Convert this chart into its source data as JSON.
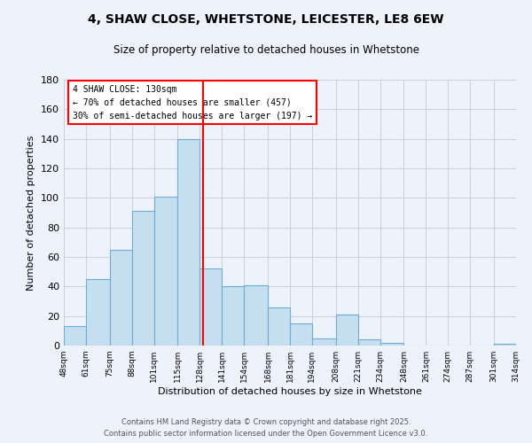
{
  "title": "4, SHAW CLOSE, WHETSTONE, LEICESTER, LE8 6EW",
  "subtitle": "Size of property relative to detached houses in Whetstone",
  "xlabel": "Distribution of detached houses by size in Whetstone",
  "ylabel": "Number of detached properties",
  "bar_color": "#c5dff0",
  "bar_edge_color": "#6aaed6",
  "bins": [
    48,
    61,
    75,
    88,
    101,
    115,
    128,
    141,
    154,
    168,
    181,
    194,
    208,
    221,
    234,
    248,
    261,
    274,
    287,
    301,
    314
  ],
  "counts": [
    13,
    45,
    65,
    91,
    101,
    140,
    52,
    40,
    41,
    26,
    15,
    5,
    21,
    4,
    2,
    0,
    0,
    0,
    0,
    1
  ],
  "property_size": 130,
  "vline_color": "red",
  "annotation_title": "4 SHAW CLOSE: 130sqm",
  "annotation_line1": "← 70% of detached houses are smaller (457)",
  "annotation_line2": "30% of semi-detached houses are larger (197) →",
  "annotation_box_color": "white",
  "annotation_box_edge": "red",
  "ylim": [
    0,
    180
  ],
  "yticks": [
    0,
    20,
    40,
    60,
    80,
    100,
    120,
    140,
    160,
    180
  ],
  "footer1": "Contains HM Land Registry data © Crown copyright and database right 2025.",
  "footer2": "Contains public sector information licensed under the Open Government Licence v3.0.",
  "bg_color": "#eef2fa"
}
